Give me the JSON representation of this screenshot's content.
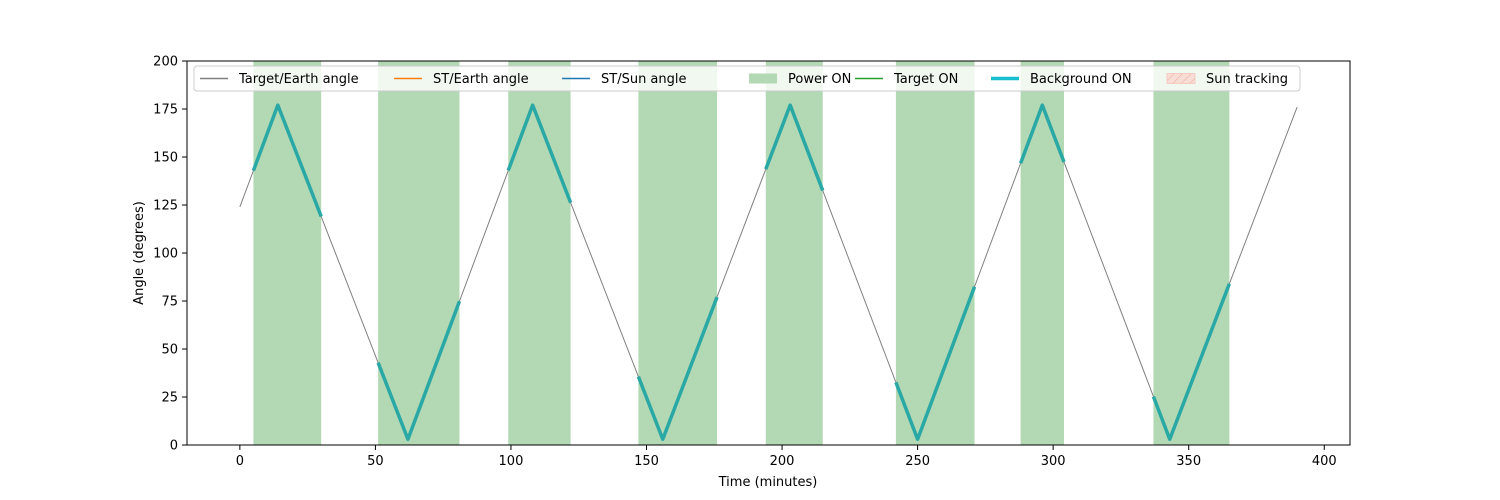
{
  "chart_data": {
    "type": "line",
    "xlabel": "Time (minutes)",
    "ylabel": "Angle (degrees)",
    "xlim": [
      -19.5,
      409.5
    ],
    "ylim": [
      0,
      200
    ],
    "xticks": [
      0,
      50,
      100,
      150,
      200,
      250,
      300,
      350,
      400
    ],
    "yticks": [
      0,
      25,
      50,
      75,
      100,
      125,
      150,
      175,
      200
    ],
    "grid": false,
    "legend_position": "top",
    "legend": [
      {
        "label": "Target/Earth angle",
        "kind": "line",
        "color": "#808080"
      },
      {
        "label": "ST/Earth angle",
        "kind": "line",
        "color": "#ff7f0e"
      },
      {
        "label": "ST/Sun angle",
        "kind": "line",
        "color": "#1f77b4"
      },
      {
        "label": "Power ON",
        "kind": "patch",
        "color": "#b2d9b3"
      },
      {
        "label": "Target ON",
        "kind": "line",
        "color": "#2ca02c"
      },
      {
        "label": "Background ON",
        "kind": "thickline",
        "color": "#17becf"
      },
      {
        "label": "Sun tracking",
        "kind": "hatch",
        "color": "#f4c5bb"
      }
    ],
    "series": [
      {
        "name": "Target/Earth angle",
        "color": "#808080",
        "x": [
          0,
          14,
          62,
          108,
          156,
          203,
          250,
          296,
          343,
          390
        ],
        "y": [
          124,
          177,
          3,
          177,
          3,
          177,
          3,
          177,
          3,
          176
        ]
      }
    ],
    "power_on_intervals": [
      [
        5,
        30
      ],
      [
        51,
        81
      ],
      [
        99,
        122
      ],
      [
        147,
        176
      ],
      [
        194,
        215
      ],
      [
        242,
        271
      ],
      [
        288,
        304
      ],
      [
        337,
        365
      ]
    ],
    "background_on_intervals": [
      [
        5,
        30
      ],
      [
        51,
        81
      ],
      [
        99,
        122
      ],
      [
        147,
        176
      ],
      [
        194,
        215
      ],
      [
        242,
        271
      ],
      [
        288,
        304
      ],
      [
        337,
        365
      ]
    ]
  }
}
